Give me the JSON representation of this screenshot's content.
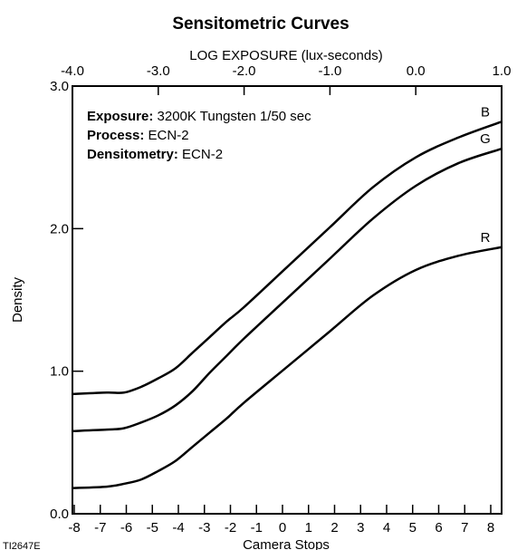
{
  "chart_data": {
    "type": "line",
    "title": "Sensitometric Curves",
    "top_axis_label": "LOG EXPOSURE (lux-seconds)",
    "xlabel": "Camera Stops",
    "ylabel": "Density",
    "figure_id": "TI2647E",
    "xlim": [
      -4.0,
      1.0
    ],
    "ylim": [
      0.0,
      3.0
    ],
    "grid": false,
    "legend": "inline labels at right end of curves",
    "top_ticks": [
      {
        "value": -4.0,
        "label": "-4.0"
      },
      {
        "value": -3.0,
        "label": "-3.0"
      },
      {
        "value": -2.0,
        "label": "-2.0"
      },
      {
        "value": -1.0,
        "label": "-1.0"
      },
      {
        "value": 0.0,
        "label": "0.0"
      },
      {
        "value": 1.0,
        "label": "1.0"
      }
    ],
    "y_ticks": [
      {
        "value": 0.0,
        "label": "0.0"
      },
      {
        "value": 1.0,
        "label": "1.0"
      },
      {
        "value": 2.0,
        "label": "2.0"
      },
      {
        "value": 3.0,
        "label": "3.0"
      }
    ],
    "stops_ticks": [
      {
        "value": -8,
        "label": "-8"
      },
      {
        "value": -7,
        "label": "-7"
      },
      {
        "value": -6,
        "label": "-6"
      },
      {
        "value": -5,
        "label": "-5"
      },
      {
        "value": -4,
        "label": "-4"
      },
      {
        "value": -3,
        "label": "-3"
      },
      {
        "value": -2,
        "label": "-2"
      },
      {
        "value": -1,
        "label": "-1"
      },
      {
        "value": 0,
        "label": "0"
      },
      {
        "value": 1,
        "label": "1"
      },
      {
        "value": 2,
        "label": "2"
      },
      {
        "value": 3,
        "label": "3"
      },
      {
        "value": 4,
        "label": "4"
      },
      {
        "value": 5,
        "label": "5"
      },
      {
        "value": 6,
        "label": "6"
      },
      {
        "value": 7,
        "label": "7"
      },
      {
        "value": 8,
        "label": "8"
      }
    ],
    "annotations": [
      {
        "key": "Exposure:",
        "value": " 3200K Tungsten 1/50 sec"
      },
      {
        "key": "Process:",
        "value": " ECN-2"
      },
      {
        "key": "Densitometry:",
        "value": " ECN-2"
      }
    ],
    "series": [
      {
        "name": "B",
        "color": "#000000",
        "x": [
          -4.0,
          -3.6,
          -3.4,
          -3.2,
          -3.0,
          -2.8,
          -2.6,
          -2.4,
          -2.2,
          -2.0,
          -1.5,
          -1.0,
          -0.5,
          0.0,
          0.5,
          1.0
        ],
        "y": [
          0.84,
          0.85,
          0.85,
          0.89,
          0.95,
          1.02,
          1.13,
          1.24,
          1.35,
          1.45,
          1.73,
          2.01,
          2.29,
          2.5,
          2.64,
          2.75
        ]
      },
      {
        "name": "G",
        "color": "#000000",
        "x": [
          -4.0,
          -3.6,
          -3.4,
          -3.2,
          -3.0,
          -2.8,
          -2.6,
          -2.4,
          -2.2,
          -2.0,
          -1.5,
          -1.0,
          -0.5,
          0.0,
          0.5,
          1.0
        ],
        "y": [
          0.58,
          0.59,
          0.6,
          0.64,
          0.69,
          0.76,
          0.86,
          0.99,
          1.11,
          1.23,
          1.51,
          1.79,
          2.07,
          2.3,
          2.46,
          2.56
        ]
      },
      {
        "name": "R",
        "color": "#000000",
        "x": [
          -4.0,
          -3.6,
          -3.4,
          -3.2,
          -3.0,
          -2.8,
          -2.6,
          -2.4,
          -2.2,
          -2.0,
          -1.5,
          -1.0,
          -0.5,
          0.0,
          0.5,
          1.0
        ],
        "y": [
          0.18,
          0.19,
          0.21,
          0.24,
          0.3,
          0.37,
          0.47,
          0.57,
          0.67,
          0.78,
          1.03,
          1.28,
          1.53,
          1.71,
          1.81,
          1.87
        ]
      }
    ]
  }
}
